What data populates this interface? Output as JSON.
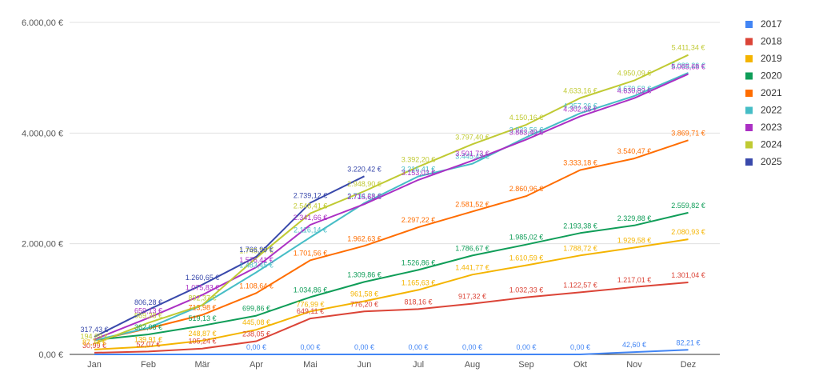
{
  "chart_data": {
    "type": "line",
    "categories": [
      "Jan",
      "Feb",
      "Mär",
      "Apr",
      "Mai",
      "Jun",
      "Jul",
      "Aug",
      "Sep",
      "Okt",
      "Nov",
      "Dez"
    ],
    "y_ticks": [
      "0,00 €",
      "2.000,00 €",
      "4.000,00 €",
      "6.000,00 €"
    ],
    "ylim": [
      0,
      6000
    ],
    "grid": true,
    "legend_position": "right",
    "series": [
      {
        "name": "2017",
        "color": "#4285f4",
        "values": [
          0,
          0,
          0,
          0,
          0,
          0,
          0,
          0,
          0,
          0,
          42.6,
          82.21
        ],
        "labels": [
          null,
          null,
          null,
          "0,00 €",
          "0,00 €",
          "0,00 €",
          "0,00 €",
          "0,00 €",
          "0,00 €",
          "0,00 €",
          "42,60 €",
          "82,21 €"
        ]
      },
      {
        "name": "2018",
        "color": "#db4437",
        "values": [
          30.99,
          52.07,
          105.24,
          238.05,
          649.11,
          776.2,
          818.16,
          917.32,
          1032.33,
          1122.57,
          1217.01,
          1301.04
        ],
        "labels": [
          "30,99 €",
          "52,07 €",
          "105,24 €",
          "238,05 €",
          "649,11 €",
          "776,20 €",
          "818,16 €",
          "917,32 €",
          "1.032,33 €",
          "1.122,57 €",
          "1.217,01 €",
          "1.301,04 €"
        ]
      },
      {
        "name": "2019",
        "color": "#f4b400",
        "values": [
          87.74,
          139.91,
          248.87,
          445.08,
          776.99,
          961.58,
          1165.63,
          1441.77,
          1610.59,
          1788.72,
          1929.58,
          2080.93
        ],
        "labels": [
          "87,74 €",
          "139,91 €",
          "248,87 €",
          "445,08 €",
          "776,99 €",
          "961,58 €",
          "1.165,63 €",
          "1.441,77 €",
          "1.610,59 €",
          "1.788,72 €",
          "1.929,58 €",
          "2.080,93 €"
        ]
      },
      {
        "name": "2020",
        "color": "#0f9d58",
        "values": [
          260,
          362.08,
          519.13,
          699.86,
          1034.86,
          1309.86,
          1526.86,
          1786.67,
          1985.02,
          2193.38,
          2329.88,
          2559.82
        ],
        "labels": [
          null,
          "362,08 €",
          "519,13 €",
          "699,86 €",
          "1.034,86 €",
          "1.309,86 €",
          "1.526,86 €",
          "1.786,67 €",
          "1.985,02 €",
          "2.193,38 €",
          "2.329,88 €",
          "2.559,82 €"
        ]
      },
      {
        "name": "2021",
        "color": "#ff6d00",
        "values": [
          250,
          470,
          713.98,
          1108.64,
          1701.56,
          1962.63,
          2297.22,
          2581.52,
          2860.96,
          3333.18,
          3540.47,
          3869.71
        ],
        "labels": [
          null,
          null,
          "713,98 €",
          "1.108,64 €",
          "1.701,56 €",
          "1.962,63 €",
          "2.297,22 €",
          "2.581,52 €",
          "2.860,96 €",
          "3.333,18 €",
          "3.540,47 €",
          "3.869,71 €"
        ]
      },
      {
        "name": "2022",
        "color": "#46bdc6",
        "values": [
          255,
          480,
          892.37,
          1483.45,
          2116.14,
          2734.23,
          3216.41,
          3445.43,
          3923.56,
          4357.26,
          4670.58,
          5089.26
        ],
        "labels": [
          null,
          null,
          null,
          "1.483,45 €",
          "2.116,14 €",
          "2.734,23 €",
          "3.216,41 €",
          "3.445,43 €",
          "3.923,56 €",
          "4.357,26 €",
          "4.670,58 €",
          "5.089,26 €"
        ]
      },
      {
        "name": "2023",
        "color": "#ab30c4",
        "values": [
          270,
          659.13,
          1075.83,
          1576.41,
          2341.66,
          2715.68,
          3153.03,
          3501.73,
          3883.4,
          4302.36,
          4630.82,
          5065.68
        ],
        "labels": [
          null,
          "659,13 €",
          "1.075,83 €",
          "1.576,41 €",
          "2.341,66 €",
          "2.715,68 €",
          "3.153,03 €",
          "3.501,73 €",
          "3.883,40 €",
          "4.302,36 €",
          "4.630,82 €",
          "5.065,68 €"
        ]
      },
      {
        "name": "2024",
        "color": "#c0ca33",
        "values": [
          194.89,
          569.38,
          892.37,
          1745.37,
          2548.41,
          2948.9,
          3392.2,
          3797.4,
          4150.16,
          4633.16,
          4950.09,
          5411.34
        ],
        "labels": [
          "194,89 €",
          "569,38 €",
          "892,37 €",
          "1.745,37 €",
          "2.548,41 €",
          "2.948,90 €",
          "3.392,20 €",
          "3.797,40 €",
          "4.150,16 €",
          "4.633,16 €",
          "4.950,09 €",
          "5.411,34 €"
        ]
      },
      {
        "name": "2025",
        "color": "#3949ab",
        "values": [
          317.43,
          806.28,
          1260.65,
          1766.99,
          2739.12,
          3220.42,
          null,
          null,
          null,
          null,
          null,
          null
        ],
        "labels": [
          "317,43 €",
          "806,28 €",
          "1.260,65 €",
          "1.766,99 €",
          "2.739,12 €",
          "3.220,42 €",
          null,
          null,
          null,
          null,
          null,
          null
        ]
      }
    ]
  }
}
